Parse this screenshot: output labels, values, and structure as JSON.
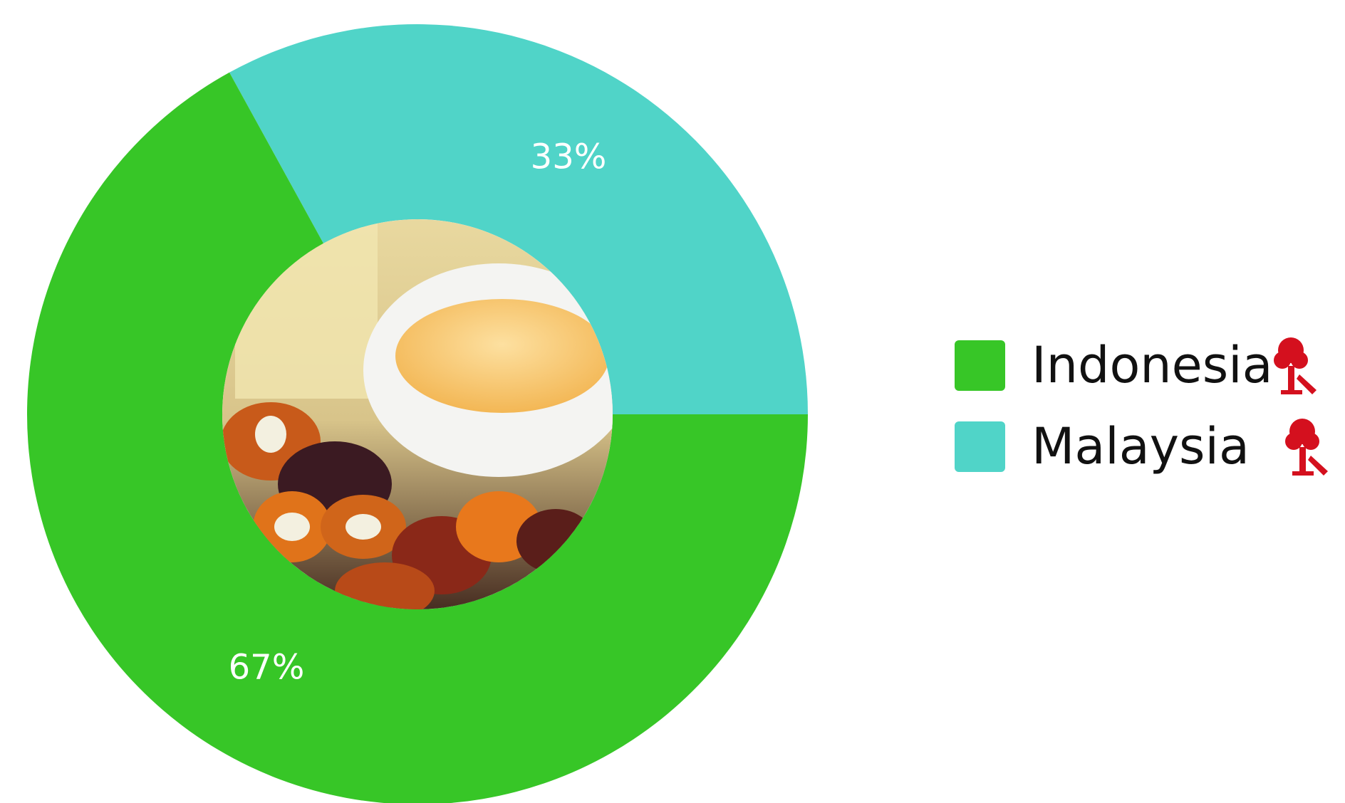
{
  "chart_data": {
    "type": "donut",
    "categories": [
      "Indonesia",
      "Malaysia"
    ],
    "values": [
      67,
      33
    ],
    "value_labels": [
      "67%",
      "33%"
    ],
    "colors": [
      "#37c627",
      "#50d4c8"
    ],
    "legend": "right"
  }
}
